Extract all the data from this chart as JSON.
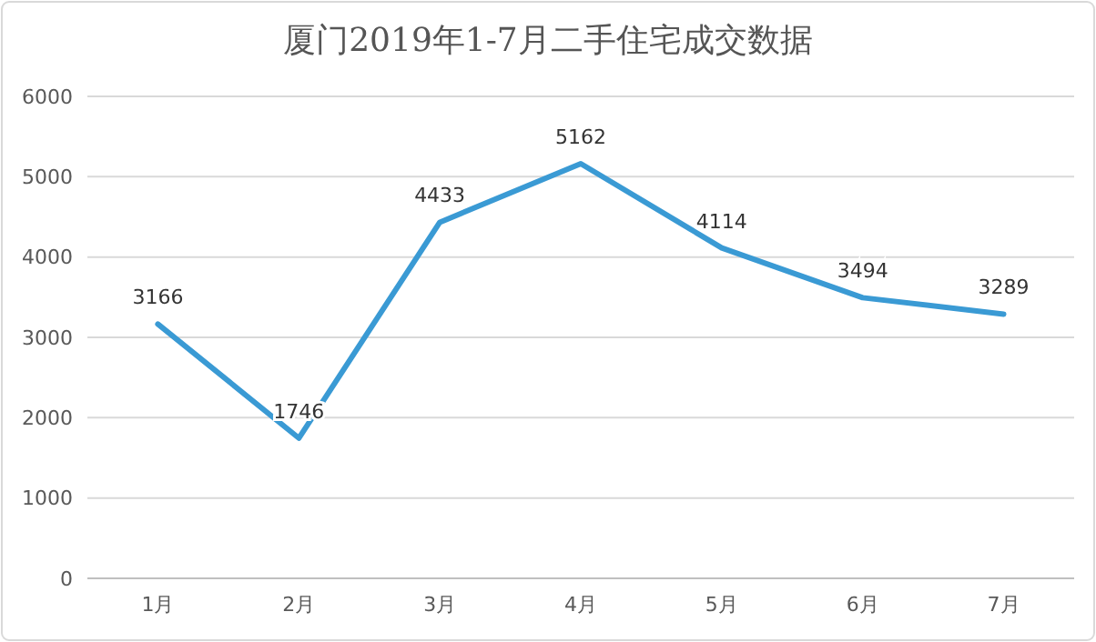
{
  "chart_data": {
    "type": "line",
    "title": "厦门2019年1-7月二手住宅成交数据",
    "categories": [
      "1月",
      "2月",
      "3月",
      "4月",
      "5月",
      "6月",
      "7月"
    ],
    "series": [
      {
        "color": "#3a9ad4",
        "values": [
          3166,
          1746,
          4433,
          5162,
          4114,
          3494,
          3289
        ]
      }
    ],
    "ylim": [
      0,
      6000
    ],
    "yticks": [
      0,
      1000,
      2000,
      3000,
      4000,
      5000,
      6000
    ],
    "grid": "y",
    "data_labels": true,
    "marker": "none",
    "line_style": "solid"
  }
}
